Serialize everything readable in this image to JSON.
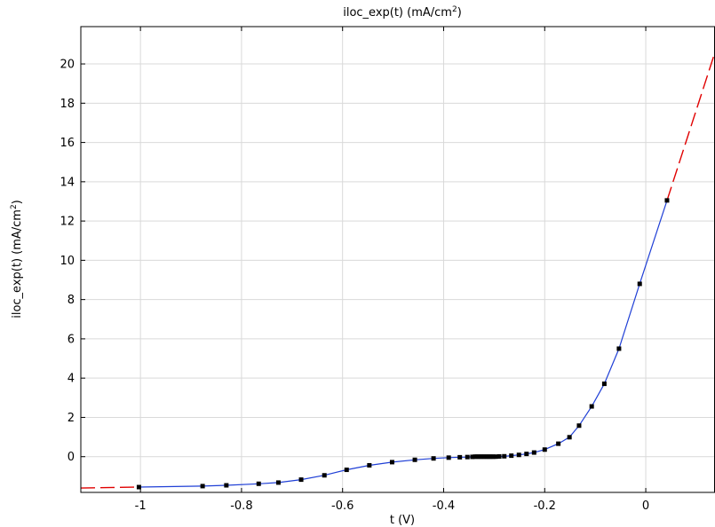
{
  "chart_data": {
    "type": "line",
    "title": "iloc_exp(t) (mA/cm",
    "title_sup": "2",
    "title_suffix": ")",
    "xlabel": "t (V)",
    "ylabel": "iloc_exp(t) (mA/cm",
    "ylabel_sup": "2",
    "ylabel_suffix": ")",
    "xlim": [
      -1.118,
      0.137
    ],
    "ylim": [
      -1.82,
      21.9
    ],
    "x_ticks": [
      -1,
      -0.8,
      -0.6,
      -0.4,
      -0.2,
      0
    ],
    "x_tick_labels": [
      "-1",
      "-0.8",
      "-0.6",
      "-0.4",
      "-0.2",
      "0"
    ],
    "y_ticks": [
      0,
      2,
      4,
      6,
      8,
      10,
      12,
      14,
      16,
      18,
      20
    ],
    "y_tick_labels": [
      "0",
      "2",
      "4",
      "6",
      "8",
      "10",
      "12",
      "14",
      "16",
      "18",
      "20"
    ],
    "grid": true,
    "colors": {
      "interpolation": "#1f3fd6",
      "extrapolation": "#e00000",
      "points": "#000000",
      "grid": "#d9d9d9"
    },
    "series": [
      {
        "style": "interpolation",
        "x": [
          -1.003,
          -0.877,
          -0.83,
          -0.766,
          -0.727,
          -0.682,
          -0.636,
          -0.592,
          -0.547,
          -0.502,
          -0.457,
          -0.42,
          -0.39,
          -0.368,
          -0.353,
          -0.343,
          -0.338,
          -0.334,
          -0.33,
          -0.326,
          -0.322,
          -0.318,
          -0.314,
          -0.31,
          -0.306,
          -0.302,
          -0.297,
          -0.29,
          -0.28,
          -0.266,
          -0.251,
          -0.236,
          -0.221,
          -0.2,
          -0.173,
          -0.151,
          -0.132,
          -0.107,
          -0.082,
          -0.053,
          -0.012,
          0.042
        ],
        "y": [
          -1.55,
          -1.5,
          -1.46,
          -1.38,
          -1.32,
          -1.17,
          -0.95,
          -0.67,
          -0.44,
          -0.28,
          -0.16,
          -0.09,
          -0.05,
          -0.03,
          -0.02,
          -0.01,
          0.0,
          0.0,
          0.0,
          0.0,
          0.0,
          0.0,
          0.0,
          0.0,
          0.0,
          0.0,
          0.0,
          0.01,
          0.02,
          0.05,
          0.09,
          0.14,
          0.21,
          0.36,
          0.66,
          0.99,
          1.58,
          2.56,
          3.71,
          5.5,
          8.8,
          13.05
        ]
      },
      {
        "style": "extrapolation-left",
        "x": [
          -1.118,
          -1.003
        ],
        "y": [
          -1.6,
          -1.55
        ]
      },
      {
        "style": "extrapolation-right",
        "x": [
          0.042,
          0.137
        ],
        "y": [
          13.05,
          20.6
        ]
      }
    ],
    "points": {
      "x": [
        -1.003,
        -0.877,
        -0.83,
        -0.766,
        -0.727,
        -0.682,
        -0.636,
        -0.592,
        -0.547,
        -0.502,
        -0.457,
        -0.42,
        -0.39,
        -0.368,
        -0.353,
        -0.343,
        -0.338,
        -0.334,
        -0.33,
        -0.326,
        -0.322,
        -0.318,
        -0.314,
        -0.31,
        -0.306,
        -0.302,
        -0.297,
        -0.29,
        -0.28,
        -0.266,
        -0.251,
        -0.236,
        -0.221,
        -0.2,
        -0.173,
        -0.151,
        -0.132,
        -0.107,
        -0.082,
        -0.053,
        -0.012,
        0.042
      ],
      "y": [
        -1.55,
        -1.5,
        -1.46,
        -1.38,
        -1.32,
        -1.17,
        -0.95,
        -0.67,
        -0.44,
        -0.28,
        -0.16,
        -0.09,
        -0.05,
        -0.03,
        -0.02,
        -0.01,
        0.0,
        0.0,
        0.0,
        0.0,
        0.0,
        0.0,
        0.0,
        0.0,
        0.0,
        0.0,
        0.0,
        0.01,
        0.02,
        0.05,
        0.09,
        0.14,
        0.21,
        0.36,
        0.66,
        0.99,
        1.58,
        2.56,
        3.71,
        5.5,
        8.8,
        13.05
      ]
    }
  }
}
